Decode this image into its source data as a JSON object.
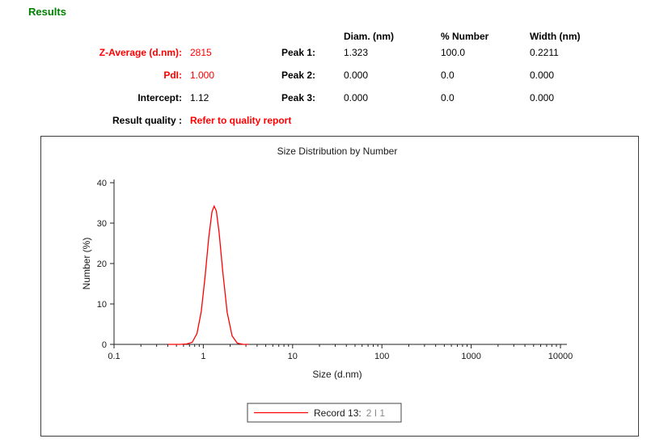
{
  "page": {
    "title": "Results"
  },
  "colors": {
    "accent_green": "#008000",
    "alert_red": "#ff0000",
    "curve_red": "#ff0000"
  },
  "results": {
    "rows": [
      {
        "label": "Z-Average (d.nm):",
        "value": "2815"
      },
      {
        "label": "PdI:",
        "value": "1.000"
      },
      {
        "label": "Intercept:",
        "value": "1.12"
      },
      {
        "label": "Result quality :",
        "value": "Refer to quality report"
      }
    ]
  },
  "peaks": {
    "columns": [
      "Diam. (nm)",
      "% Number",
      "Width (nm)"
    ],
    "rows": [
      {
        "label": "Peak 1:",
        "values": [
          "1.323",
          "100.0",
          "0.2211"
        ]
      },
      {
        "label": "Peak 2:",
        "values": [
          "0.000",
          "0.0",
          "0.000"
        ]
      },
      {
        "label": "Peak 3:",
        "values": [
          "0.000",
          "0.0",
          "0.000"
        ]
      }
    ]
  },
  "chart_data": {
    "type": "line",
    "title": "Size Distribution by Number",
    "xlabel": "Size (d.nm)",
    "ylabel": "Number (%)",
    "x_scale": "log",
    "xlim": [
      0.1,
      10000
    ],
    "ylim": [
      0,
      40
    ],
    "x_ticks": [
      "0.1",
      "1",
      "10",
      "100",
      "1000",
      "10000"
    ],
    "y_ticks": [
      0,
      10,
      20,
      30,
      40
    ],
    "grid": false,
    "legend_position": "bottom-center",
    "series": [
      {
        "name": "Record 13: 2 I 1",
        "color": "#ff0000",
        "peak_x": 1.323,
        "peak_y": 34.2,
        "x": [
          0.4,
          0.55,
          0.65,
          0.75,
          0.85,
          0.95,
          1.05,
          1.15,
          1.25,
          1.323,
          1.4,
          1.5,
          1.65,
          1.85,
          2.1,
          2.4,
          2.8,
          3.2
        ],
        "y": [
          0,
          0,
          0.1,
          0.5,
          2.7,
          8.2,
          17.0,
          26.4,
          32.8,
          34.2,
          33.0,
          27.9,
          18.1,
          7.9,
          2.1,
          0.3,
          0,
          0
        ]
      }
    ],
    "legend": {
      "record_label": "Record 13:",
      "record_detail": "2  I  1"
    }
  }
}
